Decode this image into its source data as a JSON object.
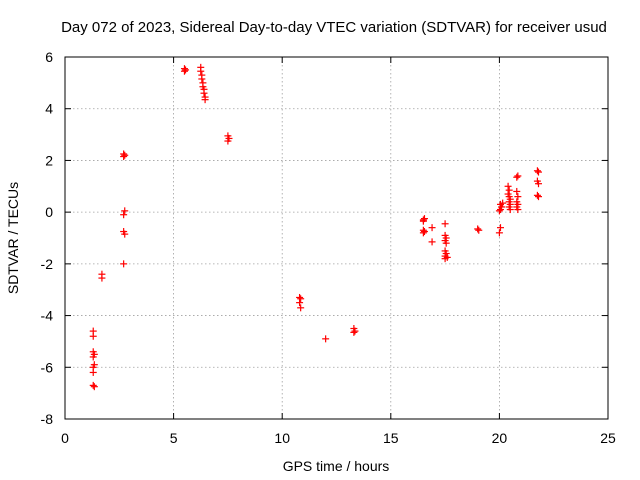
{
  "chart_data": {
    "type": "scatter",
    "title": "Day 072 of 2023, Sidereal Day-to-day VTEC variation (SDTVAR) for receiver usud",
    "xlabel": "GPS time / hours",
    "ylabel": "SDTVAR / TECUs",
    "xlim": [
      0,
      25
    ],
    "ylim": [
      -8,
      6
    ],
    "xticks": [
      0,
      5,
      10,
      15,
      20,
      25
    ],
    "yticks": [
      -8,
      -6,
      -4,
      -2,
      0,
      2,
      4,
      6
    ],
    "grid": true,
    "marker": "+",
    "color": "#ff0000",
    "series": [
      {
        "name": "SDTVAR",
        "points": [
          [
            1.3,
            -4.6
          ],
          [
            1.3,
            -4.8
          ],
          [
            1.3,
            -5.4
          ],
          [
            1.35,
            -5.5
          ],
          [
            1.3,
            -5.6
          ],
          [
            1.35,
            -5.9
          ],
          [
            1.3,
            -6.0
          ],
          [
            1.3,
            -6.2
          ],
          [
            1.3,
            -6.7
          ],
          [
            1.35,
            -6.75
          ],
          [
            1.7,
            -2.4
          ],
          [
            1.7,
            -2.55
          ],
          [
            2.7,
            2.25
          ],
          [
            2.75,
            2.2
          ],
          [
            2.7,
            2.15
          ],
          [
            2.75,
            0.05
          ],
          [
            2.7,
            -0.1
          ],
          [
            2.7,
            -0.75
          ],
          [
            2.75,
            -0.85
          ],
          [
            2.7,
            -2.0
          ],
          [
            5.5,
            5.55
          ],
          [
            5.55,
            5.5
          ],
          [
            5.5,
            5.45
          ],
          [
            6.25,
            5.6
          ],
          [
            6.25,
            5.45
          ],
          [
            6.3,
            5.3
          ],
          [
            6.3,
            5.15
          ],
          [
            6.35,
            5.0
          ],
          [
            6.35,
            4.85
          ],
          [
            6.4,
            4.75
          ],
          [
            6.4,
            4.6
          ],
          [
            6.45,
            4.45
          ],
          [
            6.45,
            4.35
          ],
          [
            7.5,
            2.95
          ],
          [
            7.55,
            2.85
          ],
          [
            7.5,
            2.75
          ],
          [
            10.8,
            -3.3
          ],
          [
            10.85,
            -3.35
          ],
          [
            10.8,
            -3.5
          ],
          [
            10.85,
            -3.7
          ],
          [
            12.0,
            -4.9
          ],
          [
            13.3,
            -4.5
          ],
          [
            13.35,
            -4.6
          ],
          [
            13.3,
            -4.65
          ],
          [
            16.5,
            -0.3
          ],
          [
            16.55,
            -0.25
          ],
          [
            16.5,
            -0.35
          ],
          [
            16.5,
            -0.7
          ],
          [
            16.55,
            -0.75
          ],
          [
            16.5,
            -0.8
          ],
          [
            16.9,
            -0.6
          ],
          [
            16.9,
            -1.15
          ],
          [
            17.5,
            -0.45
          ],
          [
            17.5,
            -0.9
          ],
          [
            17.55,
            -1.0
          ],
          [
            17.5,
            -1.1
          ],
          [
            17.55,
            -1.2
          ],
          [
            17.5,
            -1.5
          ],
          [
            17.55,
            -1.6
          ],
          [
            17.5,
            -1.7
          ],
          [
            17.6,
            -1.75
          ],
          [
            17.5,
            -1.8
          ],
          [
            19.0,
            -0.65
          ],
          [
            19.05,
            -0.7
          ],
          [
            20.0,
            -0.8
          ],
          [
            20.05,
            -0.6
          ],
          [
            20.0,
            0.05
          ],
          [
            20.05,
            0.1
          ],
          [
            20.1,
            0.2
          ],
          [
            20.05,
            0.3
          ],
          [
            20.15,
            0.35
          ],
          [
            20.4,
            1.0
          ],
          [
            20.45,
            0.85
          ],
          [
            20.4,
            0.7
          ],
          [
            20.45,
            0.6
          ],
          [
            20.5,
            0.5
          ],
          [
            20.45,
            0.4
          ],
          [
            20.5,
            0.3
          ],
          [
            20.45,
            0.2
          ],
          [
            20.5,
            0.1
          ],
          [
            20.8,
            1.35
          ],
          [
            20.85,
            1.4
          ],
          [
            20.8,
            0.8
          ],
          [
            20.85,
            0.6
          ],
          [
            20.8,
            0.4
          ],
          [
            20.85,
            0.3
          ],
          [
            20.8,
            0.2
          ],
          [
            20.85,
            0.1
          ],
          [
            21.75,
            1.6
          ],
          [
            21.8,
            1.55
          ],
          [
            21.75,
            1.2
          ],
          [
            21.8,
            1.1
          ],
          [
            21.75,
            0.65
          ],
          [
            21.8,
            0.6
          ]
        ]
      }
    ]
  }
}
